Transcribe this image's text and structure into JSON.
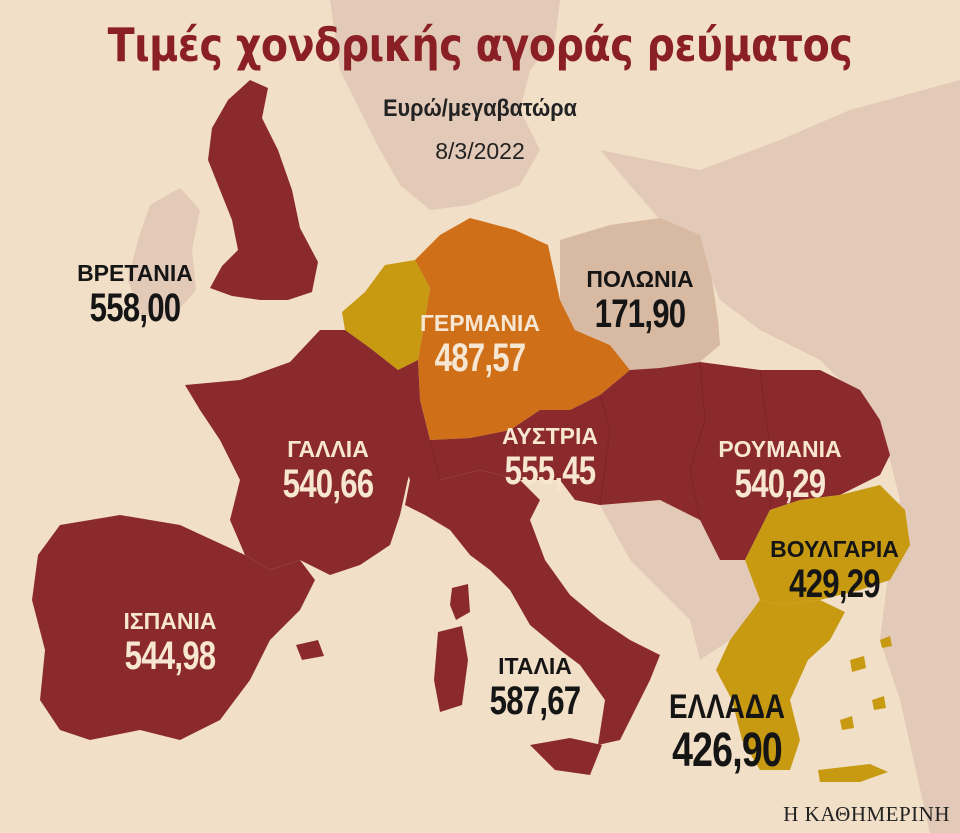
{
  "title": "Τιμές χονδρικής αγοράς ρεύματος",
  "unit": "Ευρώ/μεγαβατώρα",
  "date": "8/3/2022",
  "source": "Η ΚΑΘΗΜΕΡΙΝΗ",
  "colors": {
    "sea": "#f2dfc8",
    "neutral_land": "#e3c9b7",
    "highest": "#8b2a2c",
    "germany": "#cf7019",
    "low_mid": "#c79a12",
    "poland": "#d8b9a2"
  },
  "countries": {
    "britain": {
      "name": "ΒΡΕΤΑΝΙΑ",
      "value": "558,00"
    },
    "poland": {
      "name": "ΠΟΛΩΝΙΑ",
      "value": "171,90"
    },
    "germany": {
      "name": "ΓΕΡΜΑΝΙΑ",
      "value": "487,57"
    },
    "france": {
      "name": "ΓΑΛΛΙΑ",
      "value": "540,66"
    },
    "austria": {
      "name": "ΑΥΣΤΡΙΑ",
      "value": "555,45"
    },
    "romania": {
      "name": "ΡΟΥΜΑΝΙΑ",
      "value": "540,29"
    },
    "bulgaria": {
      "name": "ΒΟΥΛΓΑΡΙΑ",
      "value": "429,29"
    },
    "spain": {
      "name": "ΙΣΠΑΝΙΑ",
      "value": "544,98"
    },
    "italy": {
      "name": "ΙΤΑΛΙΑ",
      "value": "587,67"
    },
    "greece": {
      "name": "ΕΛΛΑΔΑ",
      "value": "426,90"
    }
  }
}
